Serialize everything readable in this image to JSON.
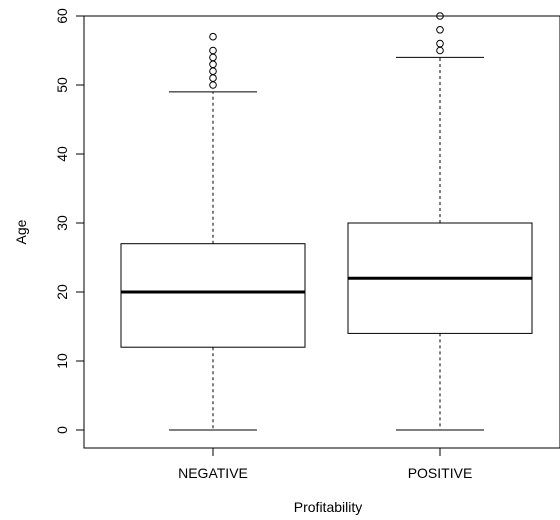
{
  "chart_data": {
    "type": "boxplot",
    "xlabel": "Profitability",
    "ylabel": "Age",
    "ylim": [
      0,
      60
    ],
    "y_ticks": [
      0,
      10,
      20,
      30,
      40,
      50,
      60
    ],
    "categories": [
      "NEGATIVE",
      "POSITIVE"
    ],
    "boxes": [
      {
        "category": "NEGATIVE",
        "whisker_low": 0,
        "q1": 12,
        "median": 20,
        "q3": 27,
        "whisker_high": 49,
        "outliers": [
          50,
          51,
          52,
          53,
          54,
          55,
          57
        ]
      },
      {
        "category": "POSITIVE",
        "whisker_low": 0,
        "q1": 14,
        "median": 22,
        "q3": 30,
        "whisker_high": 54,
        "outliers": [
          55,
          56,
          58,
          60
        ]
      }
    ],
    "grid": false,
    "legend": "none"
  }
}
